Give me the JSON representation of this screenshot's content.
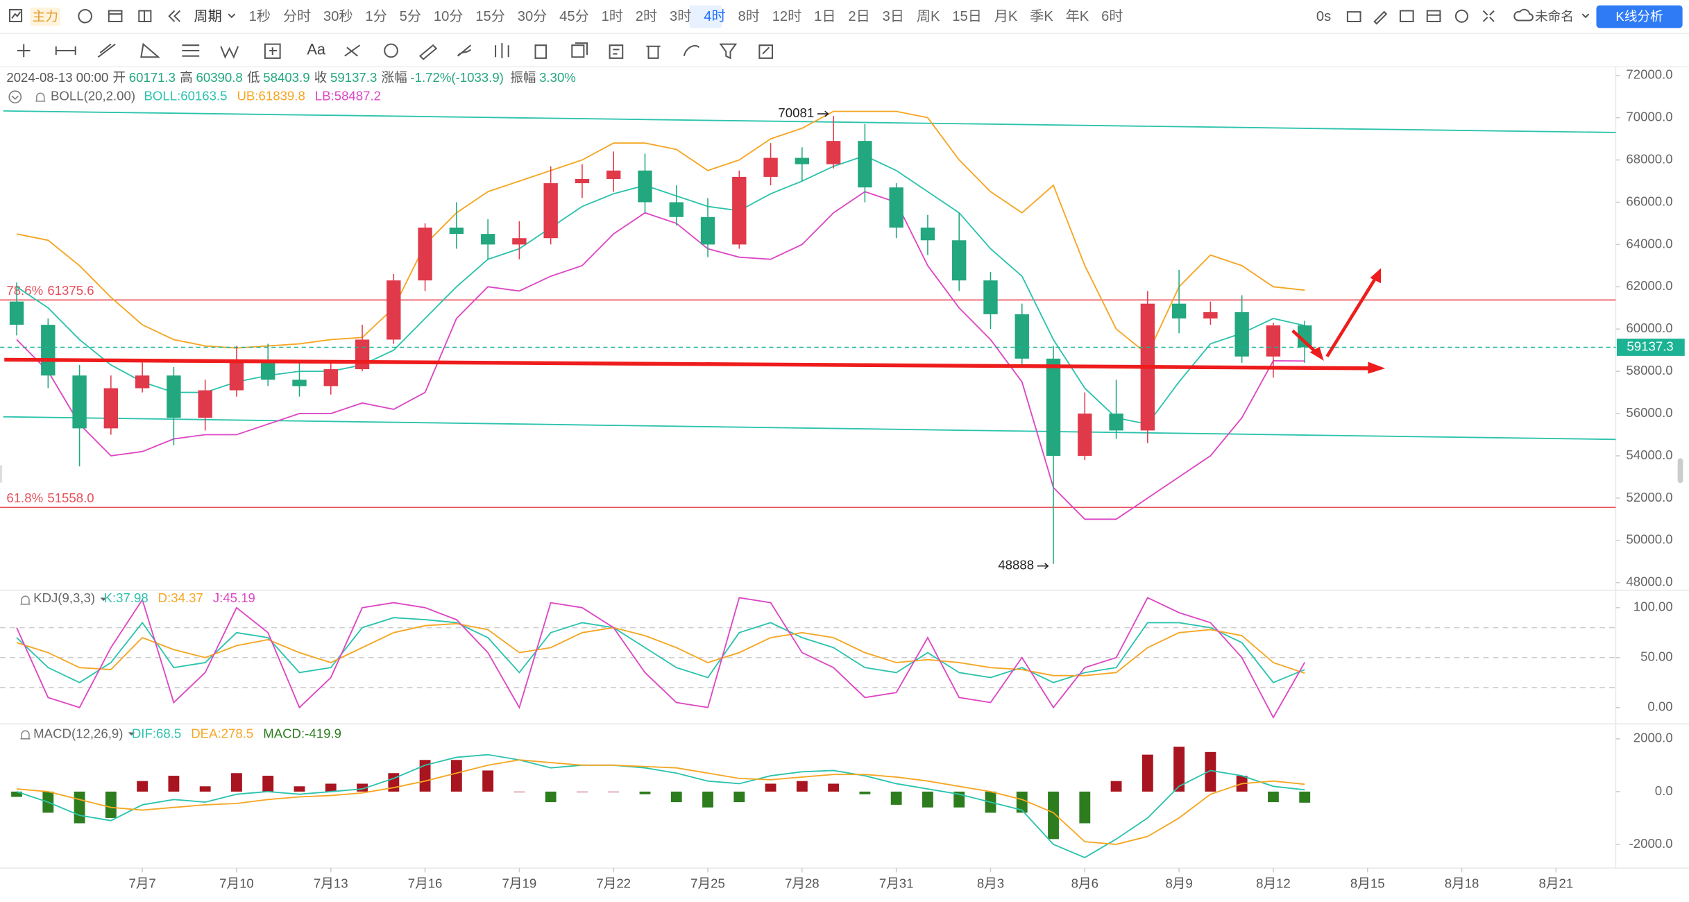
{
  "toolbar": {
    "main_badge": "主力",
    "period_menu": "周期",
    "periods": [
      "1秒",
      "分时",
      "30秒",
      "1分",
      "5分",
      "10分",
      "15分",
      "30分",
      "45分",
      "1时",
      "2时",
      "3时",
      "4时",
      "8时",
      "12时",
      "1日",
      "2日",
      "3日",
      "周K",
      "15日",
      "月K",
      "季K",
      "年K",
      "6时"
    ],
    "active_period": "4时",
    "timer": "0s",
    "layout_name": "未命名",
    "analysis_button": "K线分析",
    "text_tool": "Aa"
  },
  "chart_data": [
    {
      "type": "candlestick",
      "info": {
        "datetime": "2024-08-13 00:00",
        "open_label": "开",
        "high_label": "高",
        "low_label": "低",
        "close_label": "收",
        "change_label": "涨幅",
        "change": "-1.72%(-1033.9)",
        "amplitude_label": "振幅",
        "amplitude": "3.30%"
      },
      "indicator": "BOLL(20,2.00)",
      "up_color": "#e0394a",
      "down_color": "#22a77f",
      "x": [
        3,
        4,
        5,
        6,
        7,
        8,
        9,
        10,
        11,
        12,
        13,
        14,
        15,
        16,
        17,
        18,
        19,
        20,
        21,
        22,
        23,
        24,
        25,
        26,
        27,
        28,
        29,
        30,
        31,
        32,
        33,
        34,
        35,
        36,
        37,
        38,
        39,
        40,
        41,
        42,
        43,
        44
      ],
      "open": [
        61300,
        60200,
        57800,
        55300,
        57200,
        57800,
        55800,
        57100,
        58500,
        57600,
        57300,
        58100,
        59500,
        62300,
        64800,
        64500,
        64000,
        64300,
        66900,
        67100,
        67500,
        66000,
        65300,
        64000,
        67200,
        68100,
        67800,
        68900,
        66700,
        64800,
        64200,
        62300,
        60700,
        58600,
        54000,
        56000,
        55200,
        61200,
        60500,
        60800,
        58700,
        60171.3
      ],
      "high": [
        62200,
        60500,
        58300,
        57800,
        58500,
        58200,
        57600,
        59200,
        59300,
        58500,
        58400,
        60200,
        62600,
        65000,
        66000,
        65200,
        65100,
        67700,
        67800,
        68400,
        68300,
        66800,
        66200,
        67500,
        68800,
        68600,
        70081,
        69700,
        66900,
        65400,
        65500,
        62700,
        61200,
        59200,
        57000,
        57600,
        61800,
        62800,
        61300,
        61600,
        60300,
        60390.8
      ],
      "low": [
        59700,
        57200,
        53500,
        55000,
        57000,
        54500,
        55200,
        56800,
        57300,
        56800,
        56900,
        58000,
        59300,
        61800,
        63800,
        63300,
        63300,
        64000,
        66200,
        66500,
        65500,
        64900,
        63400,
        63800,
        66800,
        67000,
        67600,
        66000,
        64300,
        63500,
        61800,
        60000,
        58200,
        48888,
        53800,
        54800,
        54600,
        59800,
        60200,
        58400,
        57700,
        58403.9
      ],
      "close": [
        60200,
        57800,
        55300,
        57200,
        57800,
        55800,
        57100,
        58500,
        57600,
        57300,
        58100,
        59500,
        62300,
        64800,
        64500,
        64000,
        64300,
        66900,
        67100,
        67500,
        66000,
        65300,
        64000,
        67200,
        68100,
        67800,
        68900,
        66700,
        64800,
        64200,
        62300,
        60700,
        58600,
        54000,
        56000,
        55200,
        61200,
        60500,
        60800,
        58700,
        60171.3,
        59137.3
      ],
      "series": [
        {
          "name": "BOLL:",
          "color": "#2cc3ad",
          "values": [
            62000,
            61000,
            59500,
            58300,
            57500,
            57000,
            57000,
            57500,
            57800,
            58000,
            58000,
            58300,
            59000,
            60500,
            62000,
            63300,
            63800,
            64800,
            65800,
            66400,
            66800,
            66300,
            65800,
            65600,
            66400,
            67000,
            67700,
            68200,
            67500,
            66500,
            65500,
            63800,
            62500,
            59500,
            57200,
            55800,
            55500,
            57500,
            59300,
            59800,
            60500,
            60163.5
          ]
        },
        {
          "name": "UB:",
          "color": "#f5a623",
          "values": [
            64500,
            64200,
            63000,
            61500,
            60200,
            59500,
            59200,
            59100,
            59200,
            59300,
            59500,
            59600,
            61000,
            64000,
            65500,
            66500,
            67000,
            67500,
            68000,
            68800,
            68800,
            68500,
            67500,
            68000,
            69000,
            69500,
            70300,
            70300,
            70300,
            70000,
            68000,
            66500,
            65500,
            66800,
            63000,
            60000,
            58800,
            62000,
            63500,
            63000,
            62000,
            61839.8
          ]
        },
        {
          "name": "LB:",
          "color": "#dd47c4",
          "values": [
            59500,
            58000,
            55500,
            54000,
            54200,
            54800,
            55000,
            55000,
            55500,
            56000,
            56000,
            56500,
            56200,
            57000,
            60500,
            62000,
            61800,
            62500,
            63000,
            64500,
            65500,
            65000,
            63800,
            63400,
            63300,
            64000,
            65500,
            66500,
            66000,
            63000,
            61000,
            59500,
            57500,
            52500,
            51000,
            51000,
            52000,
            53000,
            54000,
            55800,
            58500,
            58487.2
          ]
        }
      ],
      "levels": [
        {
          "name": "78.6%",
          "value": 61375.6,
          "color": "#e8505b"
        },
        {
          "name": "61.8%",
          "value": 51558,
          "value_label": "51558.0",
          "color": "#e8505b"
        }
      ],
      "price_color": "#1cb394",
      "xlim": [
        2.47,
        53.9
      ],
      "ylim": [
        47641,
        72410
      ],
      "yticks": [
        {
          "value": 48000,
          "label": "48000.0"
        },
        {
          "value": 50000,
          "label": "50000.0"
        },
        {
          "value": 52000,
          "label": "52000.0"
        },
        {
          "value": 54000,
          "label": "54000.0"
        },
        {
          "value": 56000,
          "label": "56000.0"
        },
        {
          "value": 58000,
          "label": "58000.0"
        },
        {
          "value": 60000,
          "label": "60000.0"
        },
        {
          "value": 62000,
          "label": "62000.0"
        },
        {
          "value": 64000,
          "label": "64000.0"
        },
        {
          "value": 66000,
          "label": "66000.0"
        },
        {
          "value": 68000,
          "label": "68000.0"
        },
        {
          "value": 70000,
          "label": "70000.0"
        },
        {
          "value": 72000,
          "label": "72000.0"
        }
      ]
    },
    {
      "type": "line",
      "indicator": "KDJ(9,3,3)",
      "x": [
        3,
        4,
        5,
        6,
        7,
        8,
        9,
        10,
        11,
        12,
        13,
        14,
        15,
        16,
        17,
        18,
        19,
        20,
        21,
        22,
        23,
        24,
        25,
        26,
        27,
        28,
        29,
        30,
        31,
        32,
        33,
        34,
        35,
        36,
        37,
        38,
        39,
        40,
        41,
        42,
        43,
        44
      ],
      "series": [
        {
          "name": "K:",
          "color": "#2cc3ad",
          "values": [
            70,
            40,
            25,
            45,
            85,
            40,
            45,
            75,
            70,
            35,
            40,
            80,
            90,
            88,
            85,
            70,
            35,
            75,
            85,
            80,
            60,
            40,
            30,
            75,
            85,
            70,
            60,
            40,
            35,
            55,
            35,
            30,
            40,
            25,
            35,
            40,
            85,
            85,
            80,
            65,
            25,
            37.98
          ]
        },
        {
          "name": "D:",
          "color": "#f5a623",
          "values": [
            65,
            55,
            40,
            38,
            70,
            58,
            50,
            62,
            68,
            55,
            45,
            60,
            75,
            82,
            84,
            78,
            55,
            60,
            75,
            80,
            72,
            60,
            45,
            55,
            70,
            75,
            70,
            55,
            45,
            48,
            45,
            40,
            38,
            32,
            32,
            35,
            60,
            75,
            78,
            72,
            45,
            34.37
          ]
        },
        {
          "name": "J:",
          "color": "#dd47c4",
          "values": [
            80,
            10,
            0,
            60,
            108,
            5,
            35,
            100,
            75,
            0,
            30,
            100,
            105,
            100,
            88,
            55,
            0,
            105,
            100,
            80,
            35,
            5,
            0,
            110,
            105,
            55,
            40,
            10,
            15,
            70,
            10,
            5,
            50,
            0,
            40,
            50,
            110,
            95,
            85,
            50,
            -10,
            45.19
          ]
        }
      ],
      "guides": [
        20,
        50,
        80
      ],
      "xlim": [
        2.47,
        53.9
      ],
      "ylim": [
        -16.25,
        117.5
      ],
      "yticks": [
        {
          "value": 0,
          "label": "0.00"
        },
        {
          "value": 50,
          "label": "50.00"
        },
        {
          "value": 100,
          "label": "100.00"
        }
      ]
    },
    {
      "type": "macd",
      "indicator": "MACD(12,26,9)",
      "x": [
        3,
        4,
        5,
        6,
        7,
        8,
        9,
        10,
        11,
        12,
        13,
        14,
        15,
        16,
        17,
        18,
        19,
        20,
        21,
        22,
        23,
        24,
        25,
        26,
        27,
        28,
        29,
        30,
        31,
        32,
        33,
        34,
        35,
        36,
        37,
        38,
        39,
        40,
        41,
        42,
        43,
        44
      ],
      "series": [
        {
          "name": "DIF:",
          "color": "#2cc3ad",
          "values": [
            0,
            -400,
            -900,
            -1100,
            -500,
            -300,
            -400,
            -100,
            0,
            -100,
            0,
            100,
            500,
            1000,
            1300,
            1400,
            1200,
            900,
            1000,
            1000,
            900,
            700,
            400,
            300,
            600,
            750,
            800,
            600,
            300,
            100,
            -100,
            -400,
            -700,
            -2000,
            -2500,
            -1800,
            -1000,
            200,
            800,
            600,
            200,
            68.5
          ]
        },
        {
          "name": "DEA:",
          "color": "#f5a623",
          "values": [
            100,
            0,
            -300,
            -600,
            -700,
            -600,
            -500,
            -450,
            -300,
            -200,
            -150,
            -50,
            150,
            400,
            700,
            1000,
            1200,
            1100,
            1000,
            1000,
            950,
            900,
            700,
            500,
            450,
            550,
            650,
            650,
            550,
            400,
            200,
            0,
            -300,
            -800,
            -1900,
            -2000,
            -1700,
            -1000,
            -100,
            300,
            400,
            278.5
          ]
        }
      ],
      "histogram": {
        "name": "MACD:",
        "up_color": "#a8141f",
        "down_color": "#2d7d1f",
        "values": [
          -200,
          -800,
          -1200,
          -1000,
          400,
          600,
          200,
          700,
          600,
          200,
          300,
          300,
          700,
          1200,
          1200,
          800,
          0,
          -400,
          0,
          0,
          -100,
          -400,
          -600,
          -400,
          300,
          400,
          300,
          -100,
          -500,
          -600,
          -600,
          -800,
          -800,
          -1800,
          -1200,
          400,
          1400,
          1700,
          1500,
          600,
          -400,
          -419.9
        ]
      },
      "xlim": [
        2.47,
        53.9
      ],
      "ylim": [
        -2898,
        2571
      ],
      "yticks": [
        {
          "value": -2000,
          "label": "-2000.0"
        },
        {
          "value": 0,
          "label": "0.0"
        },
        {
          "value": 2000,
          "label": "2000.0"
        }
      ],
      "xticks": [
        {
          "value": 7,
          "label": "7月7"
        },
        {
          "value": 10,
          "label": "7月10"
        },
        {
          "value": 13,
          "label": "7月13"
        },
        {
          "value": 16,
          "label": "7月16"
        },
        {
          "value": 19,
          "label": "7月19"
        },
        {
          "value": 22,
          "label": "7月22"
        },
        {
          "value": 25,
          "label": "7月25"
        },
        {
          "value": 28,
          "label": "7月28"
        },
        {
          "value": 31,
          "label": "7月31"
        },
        {
          "value": 34,
          "label": "8月3"
        },
        {
          "value": 37,
          "label": "8月6"
        },
        {
          "value": 40,
          "label": "8月9"
        },
        {
          "value": 43,
          "label": "8月12"
        },
        {
          "value": 46,
          "label": "8月15"
        },
        {
          "value": 49,
          "label": "8月18"
        },
        {
          "value": 52,
          "label": "8月21"
        }
      ]
    }
  ]
}
